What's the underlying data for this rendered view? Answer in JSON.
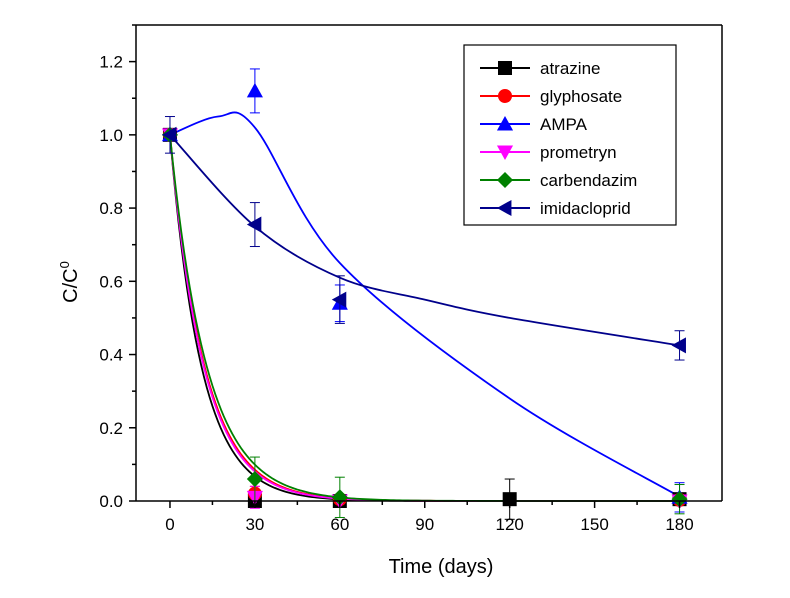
{
  "chart_data": {
    "type": "scatter",
    "xlabel": "Time (days)",
    "ylabel": "C/C",
    "ylabel_superscript": "0",
    "xlim": [
      -12,
      195
    ],
    "ylim": [
      0.0,
      1.3
    ],
    "xticks": [
      0,
      30,
      60,
      90,
      120,
      150,
      180
    ],
    "yticks": [
      0.0,
      0.2,
      0.4,
      0.6,
      0.8,
      1.0,
      1.2
    ],
    "xtick_labels": [
      "0",
      "30",
      "60",
      "90",
      "120",
      "150",
      "180"
    ],
    "ytick_labels": [
      "0.0",
      "0.2",
      "0.4",
      "0.6",
      "0.8",
      "1.0",
      "1.2"
    ],
    "legend_position": "top-right",
    "series": [
      {
        "name": "atrazine",
        "color": "#000000",
        "marker": "square",
        "x": [
          0,
          30,
          60,
          120,
          180
        ],
        "y": [
          1.0,
          0.0,
          0.0,
          0.005,
          0.005
        ],
        "err": [
          0.0,
          0.0,
          0.0,
          0.055,
          0.0
        ],
        "fit": {
          "type": "exp",
          "k": 0.09
        }
      },
      {
        "name": "glyphosate",
        "color": "#ff0000",
        "marker": "circle",
        "x": [
          0,
          30,
          60,
          180
        ],
        "y": [
          1.0,
          0.02,
          0.005,
          0.003
        ],
        "err": [
          0.0,
          0.02,
          0.0,
          0.0
        ],
        "fit": {
          "type": "exp",
          "k": 0.082
        }
      },
      {
        "name": "AMPA",
        "color": "#0000ff",
        "marker": "triangle-up",
        "x": [
          0,
          30,
          60,
          180
        ],
        "y": [
          1.0,
          1.12,
          0.54,
          0.01
        ],
        "err": [
          0.0,
          0.06,
          0.05,
          0.04
        ],
        "fit": {
          "type": "smooth",
          "points": [
            [
              0,
              1.0
            ],
            [
              17,
              1.05
            ],
            [
              30,
              1.02
            ],
            [
              60,
              0.65
            ],
            [
              120,
              0.28
            ],
            [
              180,
              0.012
            ]
          ]
        }
      },
      {
        "name": "prometryn",
        "color": "#ff00ff",
        "marker": "triangle-down",
        "x": [
          0,
          30,
          60,
          180
        ],
        "y": [
          1.0,
          0.01,
          0.0,
          0.0
        ],
        "err": [
          0.0,
          0.03,
          0.0,
          0.0
        ],
        "fit": {
          "type": "exp",
          "k": 0.084
        }
      },
      {
        "name": "carbendazim",
        "color": "#008000",
        "marker": "diamond",
        "x": [
          0,
          30,
          60,
          180
        ],
        "y": [
          1.0,
          0.06,
          0.01,
          0.005
        ],
        "err": [
          0.0,
          0.06,
          0.055,
          0.04
        ],
        "fit": {
          "type": "exp",
          "k": 0.077
        }
      },
      {
        "name": "imidacloprid",
        "color": "#00008b",
        "marker": "triangle-left",
        "x": [
          0,
          30,
          60,
          180
        ],
        "y": [
          1.0,
          0.755,
          0.55,
          0.425
        ],
        "err": [
          0.05,
          0.06,
          0.065,
          0.04
        ],
        "fit": {
          "type": "smooth",
          "points": [
            [
              0,
              1.0
            ],
            [
              30,
              0.75
            ],
            [
              60,
              0.61
            ],
            [
              90,
              0.55
            ],
            [
              120,
              0.5
            ],
            [
              180,
              0.425
            ]
          ]
        }
      }
    ]
  }
}
